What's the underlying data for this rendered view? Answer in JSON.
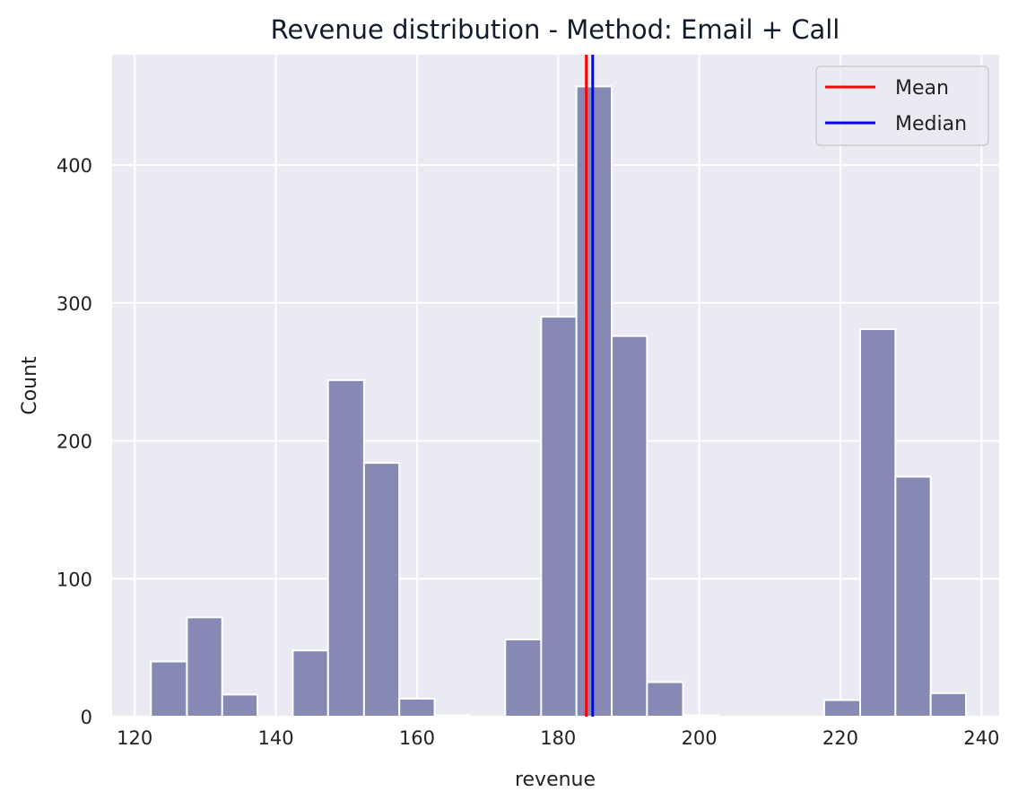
{
  "chart_data": {
    "type": "bar",
    "title": "Revenue distribution - Method: Email + Call",
    "xlabel": "revenue",
    "ylabel": "Count",
    "xlim": [
      116.8,
      242.5
    ],
    "ylim": [
      0,
      480
    ],
    "x_ticks": [
      120,
      140,
      160,
      180,
      200,
      220,
      240
    ],
    "y_ticks": [
      0,
      100,
      200,
      300,
      400
    ],
    "grid": true,
    "bar_color": "#8789b5",
    "background_color": "#eaeaf2",
    "bins": [
      {
        "x0": 122.3,
        "x1": 127.4,
        "count": 40
      },
      {
        "x0": 127.4,
        "x1": 132.4,
        "count": 72
      },
      {
        "x0": 132.4,
        "x1": 137.4,
        "count": 16
      },
      {
        "x0": 137.4,
        "x1": 142.4,
        "count": 0
      },
      {
        "x0": 142.4,
        "x1": 147.4,
        "count": 48
      },
      {
        "x0": 147.4,
        "x1": 152.5,
        "count": 244
      },
      {
        "x0": 152.5,
        "x1": 157.5,
        "count": 184
      },
      {
        "x0": 157.5,
        "x1": 162.5,
        "count": 13
      },
      {
        "x0": 162.5,
        "x1": 167.5,
        "count": 1
      },
      {
        "x0": 167.5,
        "x1": 172.5,
        "count": 0
      },
      {
        "x0": 172.5,
        "x1": 177.6,
        "count": 56
      },
      {
        "x0": 177.6,
        "x1": 182.6,
        "count": 290
      },
      {
        "x0": 182.6,
        "x1": 187.6,
        "count": 457
      },
      {
        "x0": 187.6,
        "x1": 192.6,
        "count": 276
      },
      {
        "x0": 192.6,
        "x1": 197.7,
        "count": 25
      },
      {
        "x0": 197.7,
        "x1": 202.7,
        "count": 1
      },
      {
        "x0": 202.7,
        "x1": 207.7,
        "count": 0
      },
      {
        "x0": 207.7,
        "x1": 212.7,
        "count": 0
      },
      {
        "x0": 212.7,
        "x1": 217.7,
        "count": 0
      },
      {
        "x0": 217.7,
        "x1": 222.8,
        "count": 12
      },
      {
        "x0": 222.8,
        "x1": 227.8,
        "count": 281
      },
      {
        "x0": 227.8,
        "x1": 232.8,
        "count": 174
      },
      {
        "x0": 232.8,
        "x1": 237.8,
        "count": 17
      }
    ],
    "lines": [
      {
        "name": "Mean",
        "value": 184.0,
        "color": "#ff0000"
      },
      {
        "name": "Median",
        "value": 184.9,
        "color": "#0000ff"
      }
    ],
    "legend_position": "top-right"
  }
}
